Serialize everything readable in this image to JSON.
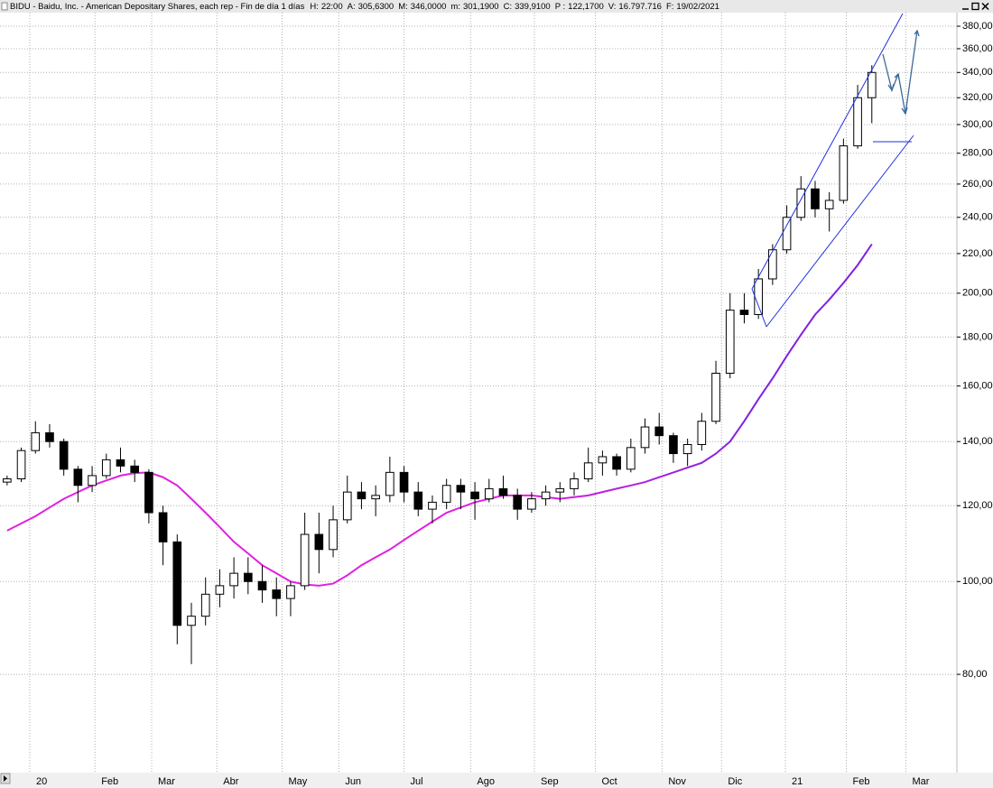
{
  "chart_data": {
    "type": "candlestick",
    "title": "BIDU - Baidu, Inc. - American Depositary Shares, each rep - Fin de día 1 días",
    "stats": [
      {
        "label": "H:",
        "value": "22:00"
      },
      {
        "label": "A:",
        "value": "305,6300"
      },
      {
        "label": "M:",
        "value": "346,0000"
      },
      {
        "label": "m:",
        "value": "301,1900"
      },
      {
        "label": "C:",
        "value": "339,9100"
      },
      {
        "label": "P :",
        "value": "122,1700",
        "color": "#e00000"
      },
      {
        "label": "V:",
        "value": "16.797.716"
      },
      {
        "label": "F:",
        "value": "19/02/2021"
      }
    ],
    "open": [
      127,
      128,
      137,
      143,
      140,
      131,
      126,
      129,
      134,
      132,
      130,
      118,
      110,
      90,
      92,
      97,
      99,
      102,
      100,
      98,
      96,
      99,
      112,
      108,
      116,
      124,
      122,
      123,
      130,
      124,
      119,
      121,
      126,
      124,
      122,
      125,
      123,
      119,
      122,
      124,
      125,
      128,
      133,
      135,
      131,
      138,
      145,
      142,
      136,
      139,
      147,
      165,
      192,
      190,
      207,
      222,
      240,
      257,
      245,
      250,
      285,
      320
    ],
    "high": [
      129,
      138,
      147,
      146,
      141,
      132,
      132,
      136,
      138,
      134,
      131,
      120,
      112,
      95,
      101,
      103,
      106,
      106,
      104,
      101,
      100,
      118,
      118,
      120,
      129,
      127,
      126,
      135,
      132,
      127,
      123,
      128,
      128,
      127,
      128,
      129,
      125,
      124,
      126,
      127,
      130,
      138,
      137,
      136,
      141,
      148,
      150,
      143,
      141,
      150,
      170,
      200,
      200,
      212,
      225,
      247,
      265,
      262,
      255,
      290,
      330,
      346
    ],
    "low": [
      126,
      127,
      136,
      138,
      129,
      121,
      124,
      128,
      130,
      127,
      115,
      104,
      86,
      82,
      90,
      94,
      96,
      97,
      95,
      92,
      92,
      98,
      102,
      106,
      115,
      119,
      117,
      121,
      121,
      117,
      115,
      119,
      119,
      116,
      121,
      122,
      116,
      118,
      120,
      121,
      123,
      127,
      129,
      129,
      130,
      136,
      139,
      133,
      132,
      137,
      146,
      163,
      186,
      188,
      204,
      220,
      238,
      240,
      232,
      248,
      283,
      301
    ],
    "close": [
      128,
      137,
      143,
      140,
      131,
      126,
      129,
      134,
      132,
      130,
      118,
      110,
      90,
      92,
      97,
      99,
      102,
      100,
      98,
      96,
      99,
      112,
      108,
      116,
      124,
      122,
      123,
      130,
      124,
      119,
      121,
      126,
      124,
      122,
      125,
      123,
      119,
      122,
      124,
      125,
      128,
      133,
      135,
      131,
      138,
      145,
      142,
      136,
      139,
      147,
      165,
      192,
      190,
      207,
      222,
      240,
      257,
      245,
      250,
      285,
      320,
      340
    ],
    "up_color": "#ffffff",
    "down_color": "#000000",
    "moving_average": {
      "color": "#e020e0",
      "end_color": "#8020e0",
      "values": [
        113,
        115,
        117,
        119.5,
        122,
        124,
        126,
        127.5,
        129,
        129.8,
        130,
        128.5,
        126,
        122,
        118,
        114,
        110,
        107,
        104,
        102,
        100,
        99.3,
        99,
        99.5,
        101.5,
        104,
        106,
        108,
        110.5,
        113,
        115.5,
        118,
        119.5,
        121,
        122,
        123,
        123,
        123,
        122.5,
        122,
        122.5,
        123,
        124,
        125,
        126,
        127,
        128.5,
        130,
        131.5,
        133,
        136,
        140,
        147,
        155,
        163,
        172,
        181,
        190,
        197,
        205,
        214,
        225
      ]
    },
    "log_scale": true,
    "grid": true,
    "xlim": [
      -0.5,
      67
    ],
    "xticks": [
      {
        "value": 1.6,
        "label": "20"
      },
      {
        "value": 6.2,
        "label": "Feb"
      },
      {
        "value": 10.2,
        "label": "Mar"
      },
      {
        "value": 14.8,
        "label": "Abr"
      },
      {
        "value": 19.4,
        "label": "May"
      },
      {
        "value": 23.4,
        "label": "Jun"
      },
      {
        "value": 28.0,
        "label": "Jul"
      },
      {
        "value": 32.7,
        "label": "Ago"
      },
      {
        "value": 37.2,
        "label": "Sep"
      },
      {
        "value": 41.5,
        "label": "Oct"
      },
      {
        "value": 46.2,
        "label": "Nov"
      },
      {
        "value": 50.4,
        "label": "Dic"
      },
      {
        "value": 54.9,
        "label": "21"
      },
      {
        "value": 59.2,
        "label": "Feb"
      },
      {
        "value": 63.4,
        "label": "Mar"
      }
    ],
    "ylim": [
      63.3,
      392.6
    ],
    "yticks": [
      {
        "value": 80,
        "label": "80,00"
      },
      {
        "value": 100,
        "label": "100,00"
      },
      {
        "value": 120,
        "label": "120,00"
      },
      {
        "value": 140,
        "label": "140,00"
      },
      {
        "value": 160,
        "label": "160,00"
      },
      {
        "value": 180,
        "label": "180,00"
      },
      {
        "value": 200,
        "label": "200,00"
      },
      {
        "value": 220,
        "label": "220,00"
      },
      {
        "value": 240,
        "label": "240,00"
      },
      {
        "value": 260,
        "label": "260,00"
      },
      {
        "value": 280,
        "label": "280,00"
      },
      {
        "value": 300,
        "label": "300,00"
      },
      {
        "value": 320,
        "label": "320,00"
      },
      {
        "value": 340,
        "label": "340,00"
      },
      {
        "value": 360,
        "label": "360,00"
      },
      {
        "value": 380,
        "label": "380,00"
      }
    ]
  }
}
